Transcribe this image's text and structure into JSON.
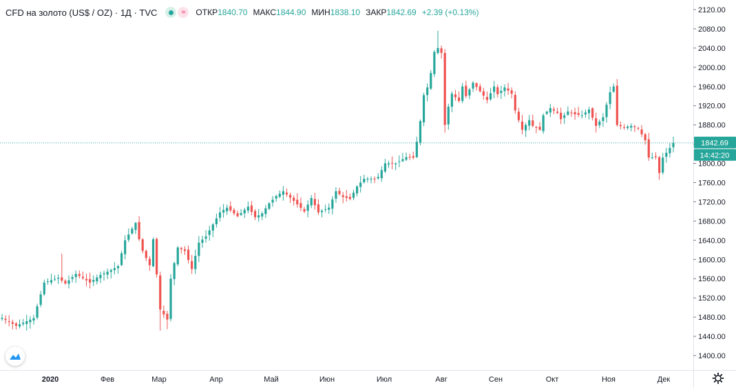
{
  "legend": {
    "symbol": "CFD на золото (US$ / OZ) · 1Д · TVC",
    "open_label": "ОТКР",
    "open": "1840.70",
    "high_label": "МАКС",
    "high": "1844.90",
    "low_label": "МИН",
    "low": "1838.10",
    "close_label": "ЗАКР",
    "close": "1842.69",
    "change": "+2.39 (+0.13%)"
  },
  "price_tag": "1842.69",
  "countdown_tag": "14:42:20",
  "colors": {
    "up": "#26a69a",
    "down": "#ef5350",
    "last_price_line": "#26a69a",
    "axis_text": "#131722",
    "border": "#e0e3eb"
  },
  "icons": {
    "visibility": "eye-icon",
    "indicator": "wave-icon",
    "logo": "tradingview-logo-icon",
    "settings": "gear-icon"
  },
  "chart_data": {
    "type": "candlestick",
    "title": "CFD на золото (US$ / OZ) · 1Д · TVC",
    "ylim": [
      1370,
      2140
    ],
    "y_ticks": [
      "2120.00",
      "2080.00",
      "2040.00",
      "2000.00",
      "1960.00",
      "1920.00",
      "1880.00",
      "1840.00",
      "1800.00",
      "1760.00",
      "1720.00",
      "1680.00",
      "1640.00",
      "1600.00",
      "1560.00",
      "1520.00",
      "1480.00",
      "1440.00",
      "1400.00"
    ],
    "x_ticks": [
      "2020",
      "Фев",
      "Мар",
      "Апр",
      "Май",
      "Июн",
      "Июл",
      "Авг",
      "Сен",
      "Окт",
      "Ноя",
      "Дек"
    ],
    "grid": false,
    "last_price": 1842.69,
    "close_path": [
      [
        0,
        1478
      ],
      [
        4,
        1462
      ],
      [
        9,
        1478
      ],
      [
        12,
        1552
      ],
      [
        16,
        1562
      ],
      [
        18,
        1550
      ],
      [
        21,
        1570
      ],
      [
        25,
        1552
      ],
      [
        28,
        1568
      ],
      [
        31,
        1578
      ],
      [
        33,
        1586
      ],
      [
        35,
        1640
      ],
      [
        38,
        1676
      ],
      [
        39,
        1642
      ],
      [
        40,
        1618
      ],
      [
        42,
        1588
      ],
      [
        43,
        1642
      ],
      [
        45,
        1496
      ],
      [
        47,
        1475
      ],
      [
        48,
        1560
      ],
      [
        50,
        1625
      ],
      [
        52,
        1618
      ],
      [
        54,
        1580
      ],
      [
        56,
        1635
      ],
      [
        58,
        1648
      ],
      [
        62,
        1698
      ],
      [
        64,
        1708
      ],
      [
        67,
        1690
      ],
      [
        70,
        1710
      ],
      [
        72,
        1688
      ],
      [
        74,
        1696
      ],
      [
        76,
        1717
      ],
      [
        78,
        1732
      ],
      [
        80,
        1742
      ],
      [
        83,
        1722
      ],
      [
        86,
        1700
      ],
      [
        88,
        1728
      ],
      [
        90,
        1698
      ],
      [
        93,
        1708
      ],
      [
        95,
        1742
      ],
      [
        97,
        1730
      ],
      [
        99,
        1726
      ],
      [
        101,
        1752
      ],
      [
        103,
        1768
      ],
      [
        106,
        1768
      ],
      [
        107,
        1772
      ],
      [
        109,
        1800
      ],
      [
        112,
        1800
      ],
      [
        115,
        1813
      ],
      [
        117,
        1812
      ],
      [
        118,
        1845
      ],
      [
        119,
        1888
      ],
      [
        120,
        1942
      ],
      [
        121,
        1958
      ],
      [
        122,
        1988
      ],
      [
        123,
        2032
      ],
      [
        124,
        2040
      ],
      [
        125,
        2030
      ],
      [
        126,
        1880
      ],
      [
        127,
        1918
      ],
      [
        128,
        1945
      ],
      [
        130,
        1930
      ],
      [
        131,
        1960
      ],
      [
        132,
        1940
      ],
      [
        134,
        1968
      ],
      [
        136,
        1950
      ],
      [
        138,
        1932
      ],
      [
        140,
        1960
      ],
      [
        141,
        1944
      ],
      [
        143,
        1958
      ],
      [
        145,
        1945
      ],
      [
        146,
        1910
      ],
      [
        148,
        1870
      ],
      [
        150,
        1890
      ],
      [
        151,
        1878
      ],
      [
        153,
        1870
      ],
      [
        154,
        1900
      ],
      [
        156,
        1915
      ],
      [
        158,
        1905
      ],
      [
        159,
        1892
      ],
      [
        161,
        1908
      ],
      [
        163,
        1902
      ],
      [
        165,
        1900
      ],
      [
        167,
        1912
      ],
      [
        169,
        1878
      ],
      [
        171,
        1896
      ],
      [
        173,
        1948
      ],
      [
        174,
        1960
      ],
      [
        175,
        1880
      ],
      [
        177,
        1875
      ],
      [
        179,
        1878
      ],
      [
        181,
        1873
      ],
      [
        183,
        1848
      ],
      [
        184,
        1812
      ],
      [
        186,
        1813
      ],
      [
        187,
        1780
      ],
      [
        188,
        1812
      ],
      [
        190,
        1832
      ],
      [
        191,
        1842.69
      ]
    ]
  }
}
